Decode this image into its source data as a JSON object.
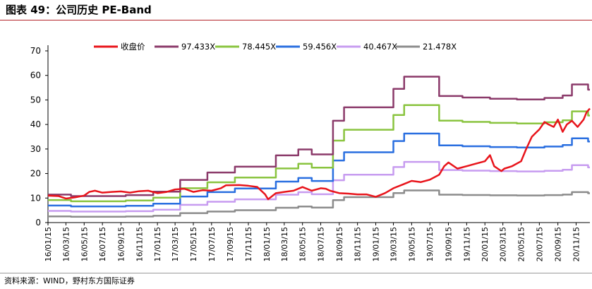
{
  "title": "图表 49：公司历史 PE-Band",
  "source": "资料来源：WIND，野村东方国际证券",
  "chart_data": {
    "type": "line",
    "title": "图表 49：公司历史 PE-Band",
    "xlabel": "",
    "ylabel": "",
    "ylim": [
      0,
      70
    ],
    "yticks": [
      0,
      10,
      20,
      30,
      40,
      50,
      60,
      70
    ],
    "xlim": [
      "2016-01-15",
      "2020-12-31"
    ],
    "x_tick_labels": [
      "16/01/15",
      "16/03/15",
      "16/05/15",
      "16/07/15",
      "16/09/15",
      "16/11/15",
      "17/01/15",
      "17/03/15",
      "17/05/15",
      "17/07/15",
      "17/09/15",
      "17/11/15",
      "18/01/15",
      "18/03/15",
      "18/05/15",
      "18/07/15",
      "18/09/15",
      "18/11/15",
      "19/01/15",
      "19/03/15",
      "19/05/15",
      "19/07/15",
      "19/09/15",
      "19/11/15",
      "20/01/15",
      "20/03/15",
      "20/05/15",
      "20/07/15",
      "20/09/15",
      "20/11/15"
    ],
    "grid": false,
    "legend_position": "top",
    "series": [
      {
        "name": "收盘价",
        "color": "#e8141b",
        "width": 2.5,
        "kind": "line",
        "points": [
          [
            "2016-01-15",
            11
          ],
          [
            "2016-02-20",
            10.8
          ],
          [
            "2016-03-15",
            9.8
          ],
          [
            "2016-04-15",
            10.3
          ],
          [
            "2016-05-15",
            11
          ],
          [
            "2016-06-01",
            12.5
          ],
          [
            "2016-06-20",
            13
          ],
          [
            "2016-07-15",
            12.2
          ],
          [
            "2016-08-15",
            12.5
          ],
          [
            "2016-09-15",
            12.7
          ],
          [
            "2016-10-15",
            12.2
          ],
          [
            "2016-11-15",
            12.8
          ],
          [
            "2016-12-15",
            13
          ],
          [
            "2017-01-15",
            12
          ],
          [
            "2017-02-15",
            12.5
          ],
          [
            "2017-03-15",
            13.5
          ],
          [
            "2017-04-15",
            13.8
          ],
          [
            "2017-05-15",
            12.5
          ],
          [
            "2017-06-15",
            13.2
          ],
          [
            "2017-07-15",
            13
          ],
          [
            "2017-08-15",
            14
          ],
          [
            "2017-09-01",
            15.2
          ],
          [
            "2017-10-15",
            15.3
          ],
          [
            "2017-11-15",
            15
          ],
          [
            "2017-12-15",
            14.5
          ],
          [
            "2018-01-10",
            11.5
          ],
          [
            "2018-01-20",
            9.5
          ],
          [
            "2018-02-15",
            12
          ],
          [
            "2018-03-15",
            12.5
          ],
          [
            "2018-04-15",
            13
          ],
          [
            "2018-05-15",
            14.5
          ],
          [
            "2018-06-15",
            13
          ],
          [
            "2018-07-15",
            14
          ],
          [
            "2018-08-01",
            13.8
          ],
          [
            "2018-08-15",
            13
          ],
          [
            "2018-09-15",
            12
          ],
          [
            "2018-10-15",
            11.8
          ],
          [
            "2018-11-15",
            11.5
          ],
          [
            "2018-12-15",
            11.5
          ],
          [
            "2019-01-15",
            10.5
          ],
          [
            "2019-02-15",
            12
          ],
          [
            "2019-03-15",
            14
          ],
          [
            "2019-04-15",
            15.5
          ],
          [
            "2019-05-15",
            17
          ],
          [
            "2019-06-15",
            16.5
          ],
          [
            "2019-07-15",
            17.5
          ],
          [
            "2019-08-15",
            19.5
          ],
          [
            "2019-09-01",
            23
          ],
          [
            "2019-09-15",
            24.5
          ],
          [
            "2019-10-15",
            22
          ],
          [
            "2019-11-15",
            23
          ],
          [
            "2019-12-15",
            24
          ],
          [
            "2020-01-15",
            25
          ],
          [
            "2020-02-01",
            27.5
          ],
          [
            "2020-02-15",
            23
          ],
          [
            "2020-03-10",
            21
          ],
          [
            "2020-03-20",
            22
          ],
          [
            "2020-04-15",
            23
          ],
          [
            "2020-05-15",
            25
          ],
          [
            "2020-06-01",
            30
          ],
          [
            "2020-06-20",
            35
          ],
          [
            "2020-07-15",
            38
          ],
          [
            "2020-08-01",
            41
          ],
          [
            "2020-08-15",
            40
          ],
          [
            "2020-09-01",
            39
          ],
          [
            "2020-09-15",
            42
          ],
          [
            "2020-10-01",
            37
          ],
          [
            "2020-10-15",
            40
          ],
          [
            "2020-11-01",
            41.5
          ],
          [
            "2020-11-20",
            39
          ],
          [
            "2020-12-10",
            42
          ],
          [
            "2020-12-20",
            45
          ],
          [
            "2020-12-31",
            46.5
          ]
        ]
      },
      {
        "name": "97.433X",
        "color": "#8b3a6a",
        "width": 2.5,
        "kind": "step",
        "ratio": 1.0,
        "points": [
          [
            "2016-01-15",
            11.4
          ],
          [
            "2016-04-01",
            10.8
          ],
          [
            "2016-07-01",
            10.8
          ],
          [
            "2016-10-01",
            11.2
          ],
          [
            "2017-01-01",
            12.6
          ],
          [
            "2017-04-01",
            17.4
          ],
          [
            "2017-07-01",
            20.4
          ],
          [
            "2017-10-01",
            22.8
          ],
          [
            "2018-01-01",
            22.8
          ],
          [
            "2018-02-15",
            27.4
          ],
          [
            "2018-05-01",
            29.8
          ],
          [
            "2018-06-15",
            27.8
          ],
          [
            "2018-08-25",
            41.5
          ],
          [
            "2018-10-01",
            47
          ],
          [
            "2019-03-15",
            54.5
          ],
          [
            "2019-04-20",
            59.5
          ],
          [
            "2019-08-15",
            51.6
          ],
          [
            "2019-11-01",
            51
          ],
          [
            "2020-02-01",
            50.5
          ],
          [
            "2020-05-01",
            50.2
          ],
          [
            "2020-08-01",
            50.8
          ],
          [
            "2020-10-01",
            51.8
          ],
          [
            "2020-11-01",
            56.3
          ],
          [
            "2020-12-25",
            54.2
          ],
          [
            "2020-12-31",
            54.2
          ]
        ]
      },
      {
        "name": "78.445X",
        "color": "#8ac43f",
        "width": 2.5,
        "kind": "step",
        "ratio": 0.805
      },
      {
        "name": "59.456X",
        "color": "#2a6fe0",
        "width": 2.5,
        "kind": "step",
        "ratio": 0.61
      },
      {
        "name": "40.467X",
        "color": "#c79cf0",
        "width": 2.5,
        "kind": "step",
        "ratio": 0.4155
      },
      {
        "name": "21.478X",
        "color": "#8c8c8c",
        "width": 2.5,
        "kind": "step",
        "ratio": 0.2205
      }
    ]
  }
}
